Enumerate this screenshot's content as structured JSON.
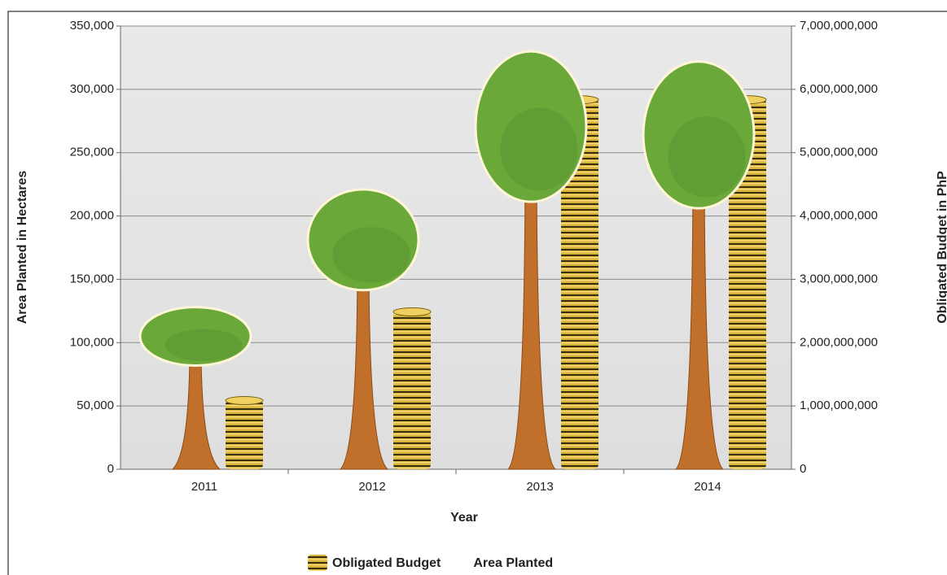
{
  "chart_data": {
    "type": "bar",
    "x_label": "Year",
    "y_label": "Area Planted in Hectares",
    "y2_label": "Obligated Budget in PhP",
    "categories": [
      "2011",
      "2012",
      "2013",
      "2014"
    ],
    "series": [
      {
        "name": "Obligated Budget",
        "color": "#d9b43a",
        "axis": "y2",
        "values": [
          1150000000,
          2550000000,
          5900000000,
          5900000000
        ]
      },
      {
        "name": "Area Planted",
        "color": "#6aa83a",
        "values": [
          128000,
          221000,
          330000,
          322000
        ]
      }
    ],
    "ylim": [
      0,
      350000
    ],
    "yticks": [
      0,
      {
        "value": 50000,
        "label": "50,000"
      },
      {
        "value": 100000,
        "label": "100,000"
      },
      {
        "value": 150000,
        "label": "150,000"
      },
      {
        "value": 200000,
        "label": "200,000"
      },
      {
        "value": 250000,
        "label": "250,000"
      },
      {
        "value": 300000,
        "label": "300,000"
      },
      {
        "value": 350000,
        "label": "350,000"
      }
    ],
    "y2lim": [
      0,
      7000000000
    ],
    "y2ticks": [
      0,
      {
        "value": 1000000000,
        "label": "1,000,000,000"
      },
      {
        "value": 2000000000,
        "label": "2,000,000,000"
      },
      {
        "value": 3000000000,
        "label": "3,000,000,000"
      },
      {
        "value": 4000000000,
        "label": "4,000,000,000"
      },
      {
        "value": 5000000000,
        "label": "5,000,000,000"
      },
      {
        "value": 6000000000,
        "label": "6,000,000,000"
      },
      {
        "value": 7000000000,
        "label": "7,000,000,000"
      }
    ],
    "grid": true
  }
}
